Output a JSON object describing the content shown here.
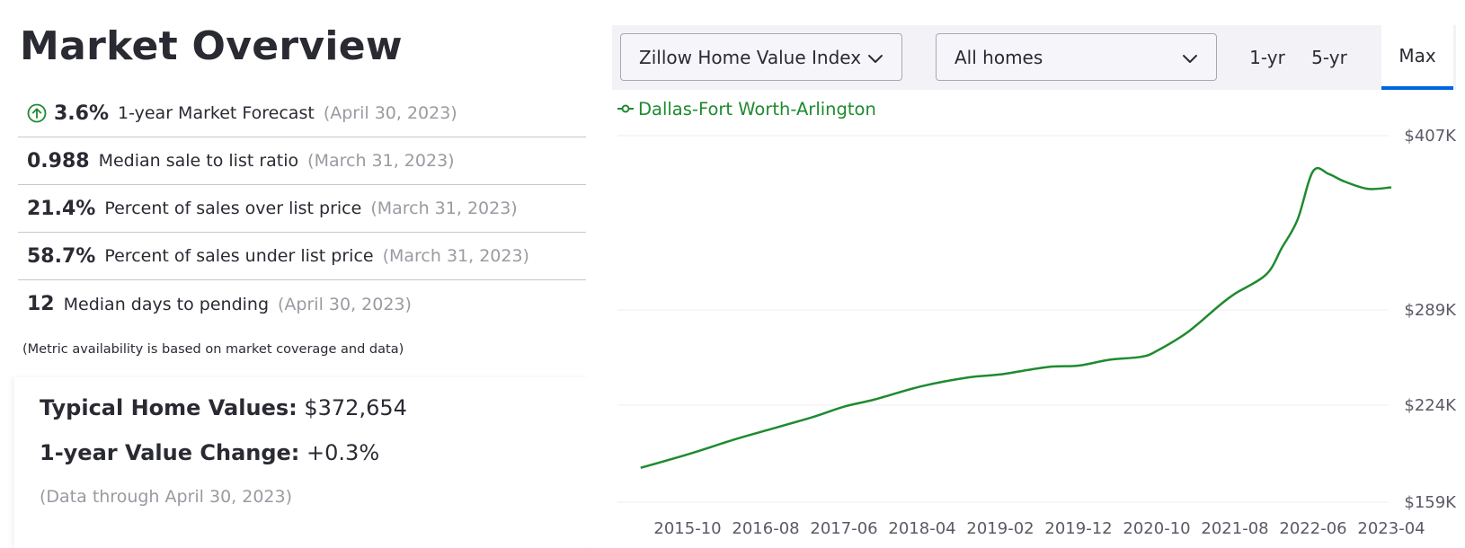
{
  "page": {
    "title": "Market Overview"
  },
  "metrics": [
    {
      "value": "3.6%",
      "label": "1-year Market Forecast",
      "date": "(April 30, 2023)",
      "icon": "arrow-up-circle-icon"
    },
    {
      "value": "0.988",
      "label": "Median sale to list ratio",
      "date": "(March 31, 2023)"
    },
    {
      "value": "21.4%",
      "label": "Percent of sales over list price",
      "date": "(March 31, 2023)"
    },
    {
      "value": "58.7%",
      "label": "Percent of sales under list price",
      "date": "(March 31, 2023)"
    },
    {
      "value": "12",
      "label": "Median days to pending",
      "date": "(April 30, 2023)"
    }
  ],
  "metric_note": "(Metric availability is based on market coverage and data)",
  "summary": {
    "home_values_label": "Typical Home Values:",
    "home_values_value": "$372,654",
    "value_change_label": "1-year Value Change:",
    "value_change_value": "+0.3%",
    "data_through": "(Data through April 30, 2023)"
  },
  "controls": {
    "index_select": "Zillow Home Value Index",
    "home_type_select": "All homes",
    "ranges": [
      "1-yr",
      "5-yr",
      "Max"
    ],
    "active_range": "Max"
  },
  "colors": {
    "series": "#1f8a30",
    "accent_tab": "#0066e0",
    "forecast_icon": "#1f8a30"
  },
  "chart_data": {
    "type": "line",
    "title": "",
    "xlabel": "",
    "ylabel": "",
    "x_tick_labels": [
      "2015-10",
      "2016-08",
      "2017-06",
      "2018-04",
      "2019-02",
      "2019-12",
      "2020-10",
      "2021-08",
      "2022-06",
      "2023-04"
    ],
    "y_tick_labels": [
      "$407K",
      "$289K",
      "$224K",
      "$159K"
    ],
    "y_ticks": [
      407,
      289,
      224,
      159
    ],
    "ylim": [
      159,
      407
    ],
    "xlim": [
      "2015-04",
      "2023-04"
    ],
    "grid": true,
    "legend_position": "top-left",
    "series": [
      {
        "name": "Dallas-Fort Worth-Arlington",
        "x": [
          "2015-04",
          "2015-10",
          "2016-04",
          "2016-08",
          "2017-02",
          "2017-06",
          "2017-10",
          "2018-04",
          "2018-10",
          "2019-02",
          "2019-08",
          "2019-12",
          "2020-04",
          "2020-08",
          "2020-10",
          "2021-02",
          "2021-06",
          "2021-08",
          "2021-12",
          "2022-02",
          "2022-04",
          "2022-06",
          "2022-08",
          "2022-10",
          "2023-01",
          "2023-04"
        ],
        "y": [
          182,
          191,
          201,
          207,
          216,
          223,
          228,
          237,
          243,
          245,
          250,
          251,
          255,
          257,
          261,
          274,
          292,
          300,
          313,
          331,
          350,
          383,
          381,
          376,
          371,
          372
        ]
      }
    ]
  }
}
